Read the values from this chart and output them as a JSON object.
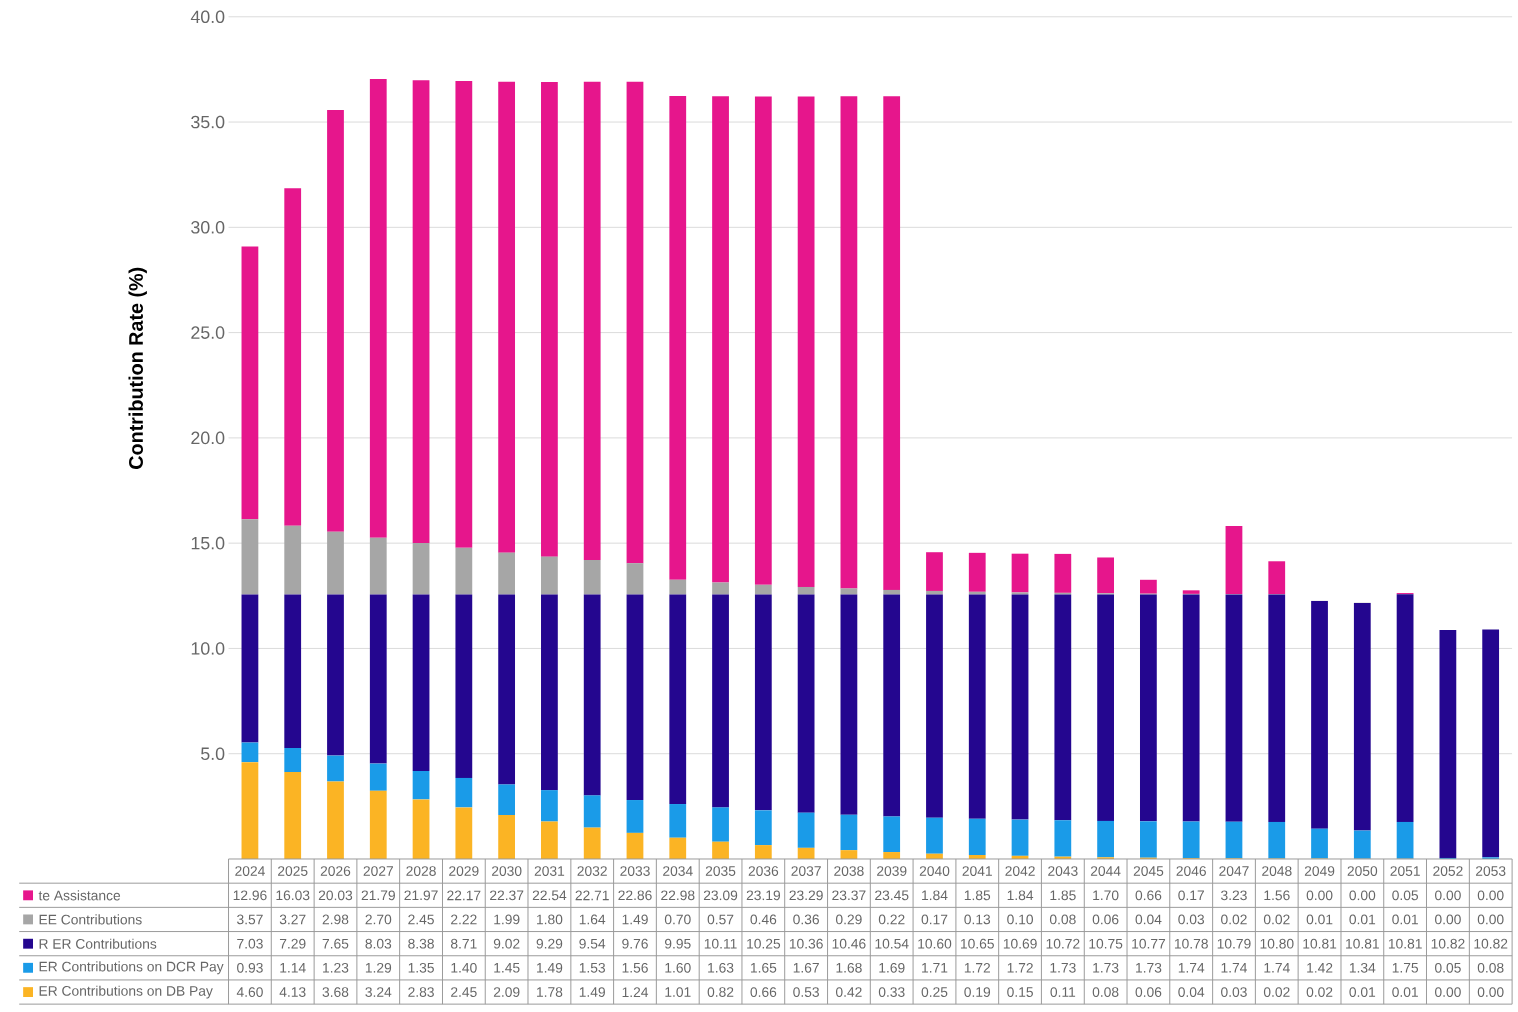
{
  "chart_data": {
    "type": "bar",
    "stacked": true,
    "ylabel": "Contribution Rate (%)",
    "categories": [
      "2024",
      "2025",
      "2026",
      "2027",
      "2028",
      "2029",
      "2030",
      "2031",
      "2032",
      "2033",
      "2034",
      "2035",
      "2036",
      "2037",
      "2038",
      "2039",
      "2040",
      "2041",
      "2042",
      "2043",
      "2044",
      "2045",
      "2046",
      "2047",
      "2048",
      "2049",
      "2050",
      "2051",
      "2052",
      "2053"
    ],
    "series": [
      {
        "name": "ER Contributions on DB Pay",
        "color": "#fbb424",
        "values": [
          4.6,
          4.13,
          3.68,
          3.24,
          2.83,
          2.45,
          2.09,
          1.78,
          1.49,
          1.24,
          1.01,
          0.82,
          0.66,
          0.53,
          0.42,
          0.33,
          0.25,
          0.19,
          0.15,
          0.11,
          0.08,
          0.06,
          0.04,
          0.03,
          0.02,
          0.02,
          0.01,
          0.01,
          0.0,
          0.0
        ],
        "value_labels": [
          "4.60",
          "4.13",
          "3.68",
          "3.24",
          "2.83",
          "2.45",
          "2.09",
          "1.78",
          "1.49",
          "1.24",
          "1.01",
          "0.82",
          "0.66",
          "0.53",
          "0.42",
          "0.33",
          "0.25",
          "0.19",
          "0.15",
          "0.11",
          "0.08",
          "0.06",
          "0.04",
          "0.03",
          "0.02",
          "0.02",
          "0.01",
          "0.01",
          "0.00",
          "0.00"
        ]
      },
      {
        "name": "ER Contributions on DCR Pay",
        "color": "#1a9be8",
        "values": [
          0.93,
          1.14,
          1.23,
          1.29,
          1.35,
          1.4,
          1.45,
          1.49,
          1.53,
          1.56,
          1.6,
          1.63,
          1.65,
          1.67,
          1.68,
          1.69,
          1.71,
          1.72,
          1.72,
          1.73,
          1.73,
          1.73,
          1.74,
          1.74,
          1.74,
          1.42,
          1.34,
          1.75,
          0.05,
          0.08
        ],
        "value_labels": [
          "0.93",
          "1.14",
          "1.23",
          "1.29",
          "1.35",
          "1.40",
          "1.45",
          "1.49",
          "1.53",
          "1.56",
          "1.60",
          "1.63",
          "1.65",
          "1.67",
          "1.68",
          "1.69",
          "1.71",
          "1.72",
          "1.72",
          "1.73",
          "1.73",
          "1.73",
          "1.74",
          "1.74",
          "1.74",
          "1.42",
          "1.34",
          "1.75",
          "0.05",
          "0.08"
        ]
      },
      {
        "name": "R ER Contributions",
        "color": "#24068f",
        "values": [
          7.03,
          7.29,
          7.65,
          8.03,
          8.38,
          8.71,
          9.02,
          9.29,
          9.54,
          9.76,
          9.95,
          10.11,
          10.25,
          10.36,
          10.46,
          10.54,
          10.6,
          10.65,
          10.69,
          10.72,
          10.75,
          10.77,
          10.78,
          10.79,
          10.8,
          10.81,
          10.81,
          10.81,
          10.82,
          10.82
        ],
        "value_labels": [
          "7.03",
          "7.29",
          "7.65",
          "8.03",
          "8.38",
          "8.71",
          "9.02",
          "9.29",
          "9.54",
          "9.76",
          "9.95",
          "10.11",
          "10.25",
          "10.36",
          "10.46",
          "10.54",
          "10.60",
          "10.65",
          "10.69",
          "10.72",
          "10.75",
          "10.77",
          "10.78",
          "10.79",
          "10.80",
          "10.81",
          "10.81",
          "10.81",
          "10.82",
          "10.82"
        ]
      },
      {
        "name": "EE Contributions",
        "color": "#a6a6a6",
        "values": [
          3.57,
          3.27,
          2.98,
          2.7,
          2.45,
          2.22,
          1.99,
          1.8,
          1.64,
          1.49,
          0.7,
          0.57,
          0.46,
          0.36,
          0.29,
          0.22,
          0.17,
          0.13,
          0.1,
          0.08,
          0.06,
          0.04,
          0.03,
          0.02,
          0.02,
          0.01,
          0.01,
          0.01,
          0.0,
          0.0
        ],
        "value_labels": [
          "3.57",
          "3.27",
          "2.98",
          "2.70",
          "2.45",
          "2.22",
          "1.99",
          "1.80",
          "1.64",
          "1.49",
          "0.70",
          "0.57",
          "0.46",
          "0.36",
          "0.29",
          "0.22",
          "0.17",
          "0.13",
          "0.10",
          "0.08",
          "0.06",
          "0.04",
          "0.03",
          "0.02",
          "0.02",
          "0.01",
          "0.01",
          "0.01",
          "0.00",
          "0.00"
        ]
      },
      {
        "name": "te Assistance",
        "color": "#e6168c",
        "values": [
          12.96,
          16.03,
          20.03,
          21.79,
          21.97,
          22.17,
          22.37,
          22.54,
          22.71,
          22.86,
          22.98,
          23.09,
          23.19,
          23.29,
          23.37,
          23.45,
          1.84,
          1.85,
          1.84,
          1.85,
          1.7,
          0.66,
          0.17,
          3.23,
          1.56,
          0.0,
          0.0,
          0.05,
          0.0,
          0.0
        ],
        "value_labels": [
          "12.96",
          "16.03",
          "20.03",
          "21.79",
          "21.97",
          "22.17",
          "22.37",
          "22.54",
          "22.71",
          "22.86",
          "22.98",
          "23.09",
          "23.19",
          "23.29",
          "23.37",
          "23.45",
          "1.84",
          "1.85",
          "1.84",
          "1.85",
          "1.70",
          "0.66",
          "0.17",
          "3.23",
          "1.56",
          "0.00",
          "0.00",
          "0.05",
          "0.00",
          "0.00"
        ]
      }
    ],
    "ylim": [
      0,
      40
    ],
    "yticks": [
      {
        "value": 5,
        "label": "5.0"
      },
      {
        "value": 10,
        "label": "10.0"
      },
      {
        "value": 15,
        "label": "15.0"
      },
      {
        "value": 20,
        "label": "20.0"
      },
      {
        "value": 25,
        "label": "25.0"
      },
      {
        "value": 30,
        "label": "30.0"
      },
      {
        "value": 35,
        "label": "35.0"
      },
      {
        "value": 40,
        "label": "40.0"
      }
    ],
    "grid": "y",
    "legend": "bottom left"
  }
}
